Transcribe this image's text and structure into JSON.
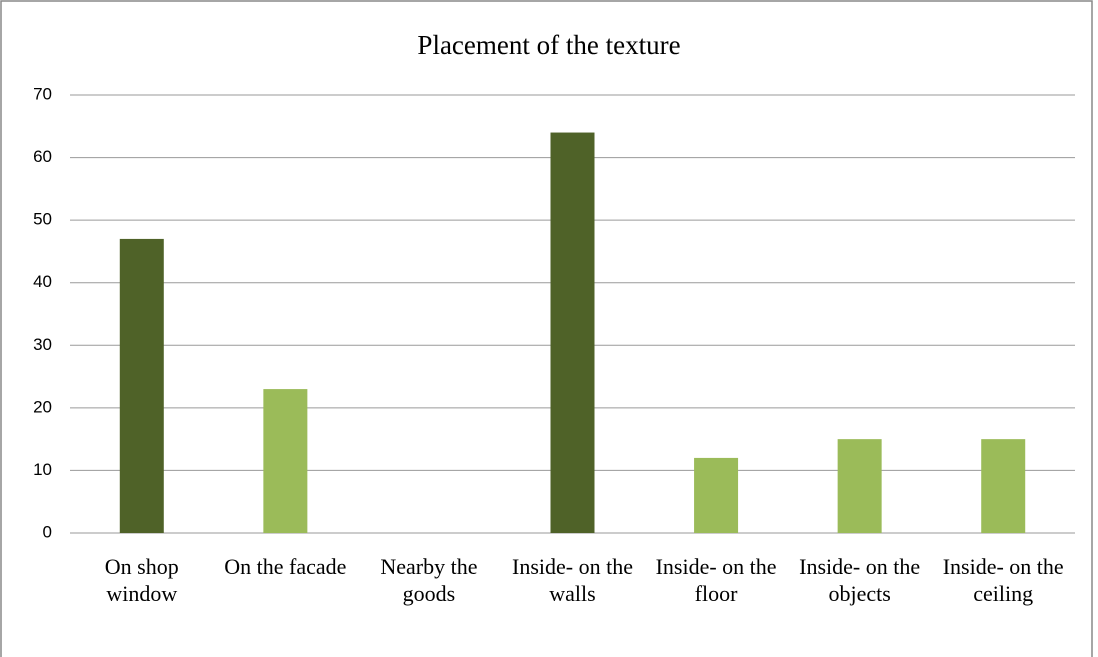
{
  "chart_data": {
    "type": "bar",
    "title": "Placement of the texture",
    "categories": [
      "On shop window",
      "On the facade",
      "Nearby the goods",
      "Inside- on the walls",
      "Inside- on the floor",
      "Inside- on the objects",
      "Inside- on the ceiling"
    ],
    "values": [
      47,
      23,
      0,
      64,
      12,
      15,
      15
    ],
    "colors": [
      "#4f6228",
      "#9bbb59",
      "#9bbb59",
      "#4f6228",
      "#9bbb59",
      "#9bbb59",
      "#9bbb59"
    ],
    "ylim": [
      0,
      70
    ],
    "yticks": [
      0,
      10,
      20,
      30,
      40,
      50,
      60,
      70
    ],
    "grid": true
  }
}
